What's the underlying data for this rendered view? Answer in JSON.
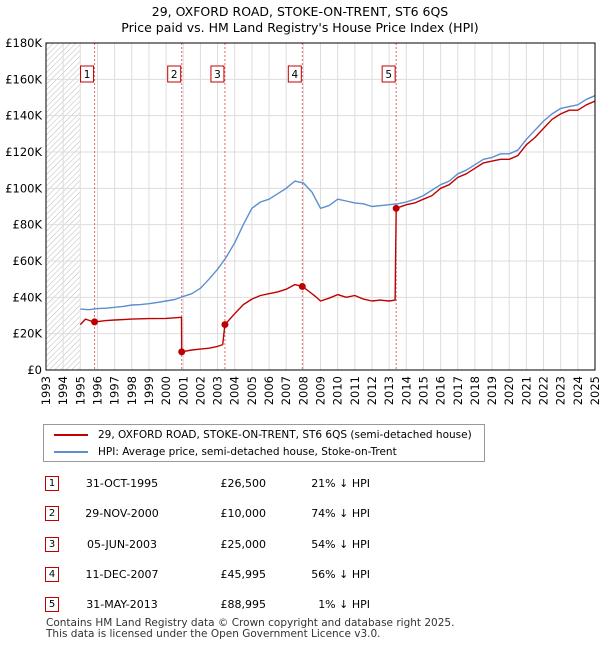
{
  "title_line1": "29, OXFORD ROAD, STOKE-ON-TRENT, ST6 6QS",
  "title_line2": "Price paid vs. HM Land Registry's House Price Index (HPI)",
  "chart_data": {
    "type": "line",
    "xlabel": "",
    "ylabel": "",
    "xlim": [
      1993,
      2025
    ],
    "ylim": [
      0,
      180000
    ],
    "x_ticks": [
      1993,
      1994,
      1995,
      1996,
      1997,
      1998,
      1999,
      2000,
      2001,
      2002,
      2003,
      2004,
      2005,
      2006,
      2007,
      2008,
      2009,
      2010,
      2011,
      2012,
      2013,
      2014,
      2015,
      2016,
      2017,
      2018,
      2019,
      2020,
      2021,
      2022,
      2023,
      2024,
      2025
    ],
    "y_ticks": [
      0,
      20000,
      40000,
      60000,
      80000,
      100000,
      120000,
      140000,
      160000,
      180000
    ],
    "y_tick_labels": [
      "£0",
      "£20K",
      "£40K",
      "£60K",
      "£80K",
      "£100K",
      "£120K",
      "£140K",
      "£160K",
      "£180K"
    ],
    "hatched_region_end": 1995.0,
    "series": [
      {
        "name": "29, OXFORD ROAD, STOKE-ON-TRENT, ST6 6QS (semi-detached house)",
        "color": "#c00000",
        "x": [
          1995.0,
          1995.3,
          1995.6,
          1995.83,
          1996.5,
          1997.0,
          1998.0,
          1999.0,
          2000.0,
          2000.9,
          2000.91,
          2001.5,
          2002.0,
          2002.5,
          2003.0,
          2003.3,
          2003.43,
          2004.0,
          2004.5,
          2005.0,
          2005.5,
          2006.0,
          2006.5,
          2007.0,
          2007.5,
          2007.94,
          2008.3,
          2008.7,
          2009.0,
          2009.5,
          2010.0,
          2010.5,
          2011.0,
          2011.5,
          2012.0,
          2012.5,
          2013.0,
          2013.35,
          2013.41,
          2014.0,
          2014.5,
          2015.0,
          2015.5,
          2016.0,
          2016.5,
          2017.0,
          2017.5,
          2018.0,
          2018.5,
          2019.0,
          2019.5,
          2020.0,
          2020.5,
          2021.0,
          2021.5,
          2022.0,
          2022.5,
          2023.0,
          2023.5,
          2024.0,
          2024.5,
          2025.0
        ],
        "y": [
          25000,
          28000,
          27000,
          26500,
          27200,
          27500,
          28000,
          28300,
          28400,
          29000,
          10000,
          11000,
          11500,
          12000,
          13000,
          14000,
          25000,
          31000,
          36000,
          39000,
          41000,
          42000,
          43000,
          44500,
          47000,
          45995,
          43500,
          40500,
          38000,
          39500,
          41500,
          40000,
          41000,
          39000,
          38000,
          38500,
          38000,
          38500,
          88995,
          91000,
          92000,
          94000,
          96000,
          100000,
          102000,
          106000,
          108000,
          111000,
          114000,
          115000,
          116000,
          116000,
          118000,
          124000,
          128000,
          133000,
          138000,
          141000,
          143000,
          143000,
          146000,
          148000
        ]
      },
      {
        "name": "HPI: Average price, semi-detached house, Stoke-on-Trent",
        "color": "#5b8fcf",
        "x": [
          1995.0,
          1995.5,
          1996.0,
          1996.5,
          1997.0,
          1997.5,
          1998.0,
          1998.5,
          1999.0,
          1999.5,
          2000.0,
          2000.5,
          2001.0,
          2001.5,
          2002.0,
          2002.5,
          2003.0,
          2003.5,
          2004.0,
          2004.5,
          2005.0,
          2005.5,
          2006.0,
          2006.5,
          2007.0,
          2007.5,
          2008.0,
          2008.5,
          2009.0,
          2009.5,
          2010.0,
          2010.5,
          2011.0,
          2011.5,
          2012.0,
          2012.5,
          2013.0,
          2013.5,
          2014.0,
          2014.5,
          2015.0,
          2015.5,
          2016.0,
          2016.5,
          2017.0,
          2017.5,
          2018.0,
          2018.5,
          2019.0,
          2019.5,
          2020.0,
          2020.5,
          2021.0,
          2021.5,
          2022.0,
          2022.5,
          2023.0,
          2023.5,
          2024.0,
          2024.5,
          2025.0
        ],
        "y": [
          33500,
          33200,
          33800,
          34000,
          34500,
          35000,
          35800,
          36000,
          36500,
          37200,
          38000,
          38800,
          40500,
          42000,
          45000,
          50000,
          55500,
          62000,
          70000,
          80000,
          89000,
          92500,
          94000,
          97000,
          100000,
          104000,
          103000,
          98000,
          89000,
          90500,
          94000,
          93000,
          92000,
          91500,
          90000,
          90500,
          91000,
          91500,
          92500,
          94000,
          96000,
          99000,
          102000,
          104000,
          108000,
          110000,
          113000,
          116000,
          117000,
          119000,
          119000,
          121000,
          127000,
          132000,
          137000,
          141000,
          144000,
          145000,
          146000,
          149000,
          151000
        ]
      }
    ],
    "sales": [
      {
        "label": "1",
        "x": 1995.83,
        "y": 26500
      },
      {
        "label": "2",
        "x": 2000.91,
        "y": 10000
      },
      {
        "label": "3",
        "x": 2003.43,
        "y": 25000
      },
      {
        "label": "4",
        "x": 2007.94,
        "y": 45995
      },
      {
        "label": "5",
        "x": 2013.41,
        "y": 88995
      }
    ]
  },
  "legend": {
    "price_paid": "29, OXFORD ROAD, STOKE-ON-TRENT, ST6 6QS (semi-detached house)",
    "hpi": "HPI: Average price, semi-detached house, Stoke-on-Trent"
  },
  "transactions": [
    {
      "num": "1",
      "date": "31-OCT-1995",
      "price": "£26,500",
      "hpi": "21% ↓ HPI"
    },
    {
      "num": "2",
      "date": "29-NOV-2000",
      "price": "£10,000",
      "hpi": "74% ↓ HPI"
    },
    {
      "num": "3",
      "date": "05-JUN-2003",
      "price": "£25,000",
      "hpi": "54% ↓ HPI"
    },
    {
      "num": "4",
      "date": "11-DEC-2007",
      "price": "£45,995",
      "hpi": "56% ↓ HPI"
    },
    {
      "num": "5",
      "date": "31-MAY-2013",
      "price": "£88,995",
      "hpi": "1% ↓ HPI"
    }
  ],
  "footer_line1": "Contains HM Land Registry data © Crown copyright and database right 2025.",
  "footer_line2": "This data is licensed under the Open Government Licence v3.0."
}
